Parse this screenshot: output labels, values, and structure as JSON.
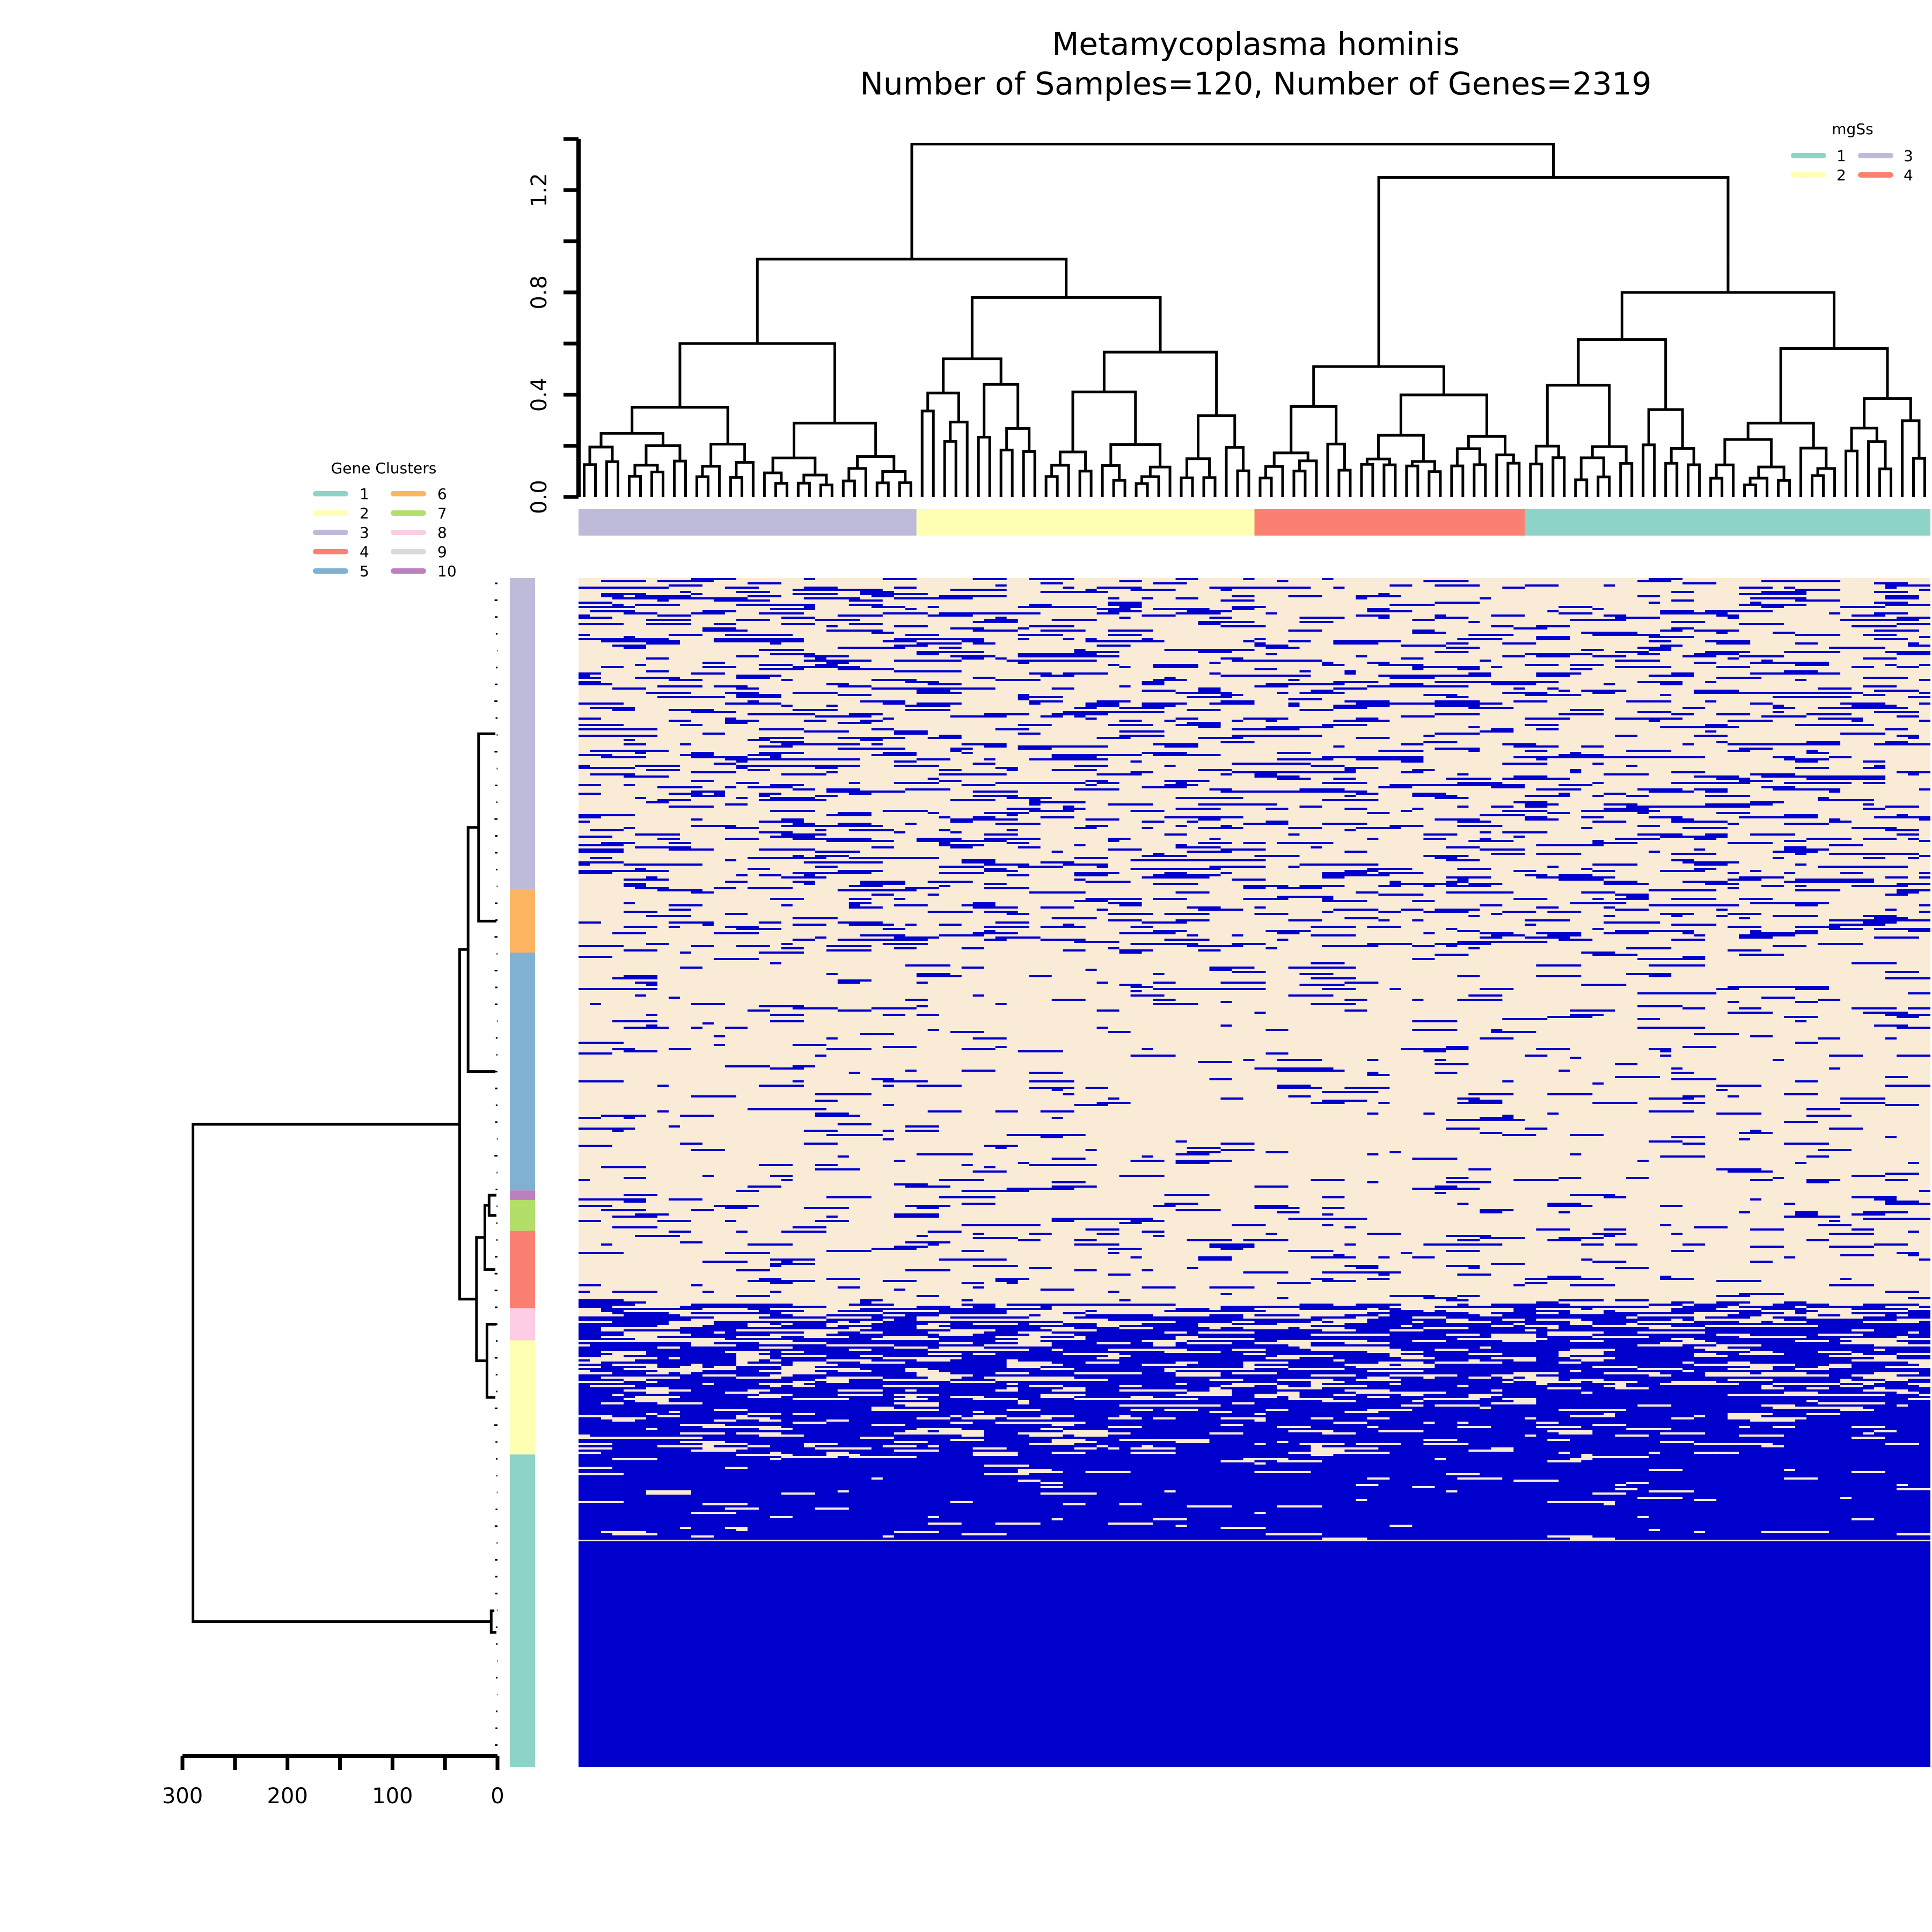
{
  "chart_data": {
    "type": "heatmap",
    "title": "Metamycoplasma hominis",
    "subtitle": "Number of Samples=120, Number of Genes=2319",
    "n_samples": 120,
    "n_genes": 2319,
    "heatmap_colors": {
      "present": "#0000cd",
      "absent": "#faebd7"
    },
    "sample_dendrogram": {
      "axis_ticks": [
        "0.0",
        "0.4",
        "0.8",
        "1.2"
      ],
      "ylim": [
        0,
        1.4
      ]
    },
    "gene_dendrogram": {
      "axis_ticks": [
        "300",
        "200",
        "100",
        "0"
      ],
      "xlim": [
        0,
        300
      ]
    },
    "mgSs_legend": {
      "title": "mgSs",
      "items": [
        {
          "label": "1",
          "color": "#8dd3c7"
        },
        {
          "label": "3",
          "color": "#bebada"
        },
        {
          "label": "2",
          "color": "#ffffb3"
        },
        {
          "label": "4",
          "color": "#fb8072"
        }
      ]
    },
    "sample_groups": [
      {
        "label": "3",
        "color": "#bebada",
        "count": 30
      },
      {
        "label": "2",
        "color": "#ffffb3",
        "count": 30
      },
      {
        "label": "4",
        "color": "#fb8072",
        "count": 24
      },
      {
        "label": "1",
        "color": "#8dd3c7",
        "count": 36
      }
    ],
    "gene_cluster_legend": {
      "title": "Gene Clusters",
      "items": [
        {
          "label": "1",
          "color": "#8dd3c7"
        },
        {
          "label": "6",
          "color": "#fdb462"
        },
        {
          "label": "2",
          "color": "#ffffb3"
        },
        {
          "label": "7",
          "color": "#b3de69"
        },
        {
          "label": "3",
          "color": "#bebada"
        },
        {
          "label": "8",
          "color": "#fccde5"
        },
        {
          "label": "4",
          "color": "#fb8072"
        },
        {
          "label": "9",
          "color": "#d9d9d9"
        },
        {
          "label": "5",
          "color": "#80b1d3"
        },
        {
          "label": "10",
          "color": "#bc80bd"
        }
      ]
    },
    "gene_cluster_bands": [
      {
        "label": "3",
        "color": "#bebada",
        "fraction": 0.262
      },
      {
        "label": "6",
        "color": "#fdb462",
        "fraction": 0.053
      },
      {
        "label": "5",
        "color": "#80b1d3",
        "fraction": 0.2
      },
      {
        "label": "10",
        "color": "#bc80bd",
        "fraction": 0.008
      },
      {
        "label": "7",
        "color": "#b3de69",
        "fraction": 0.026
      },
      {
        "label": "4",
        "color": "#fb8072",
        "fraction": 0.065
      },
      {
        "label": "8",
        "color": "#fccde5",
        "fraction": 0.027
      },
      {
        "label": "2",
        "color": "#ffffb3",
        "fraction": 0.096
      },
      {
        "label": "1",
        "color": "#8dd3c7",
        "fraction": 0.263
      }
    ]
  }
}
